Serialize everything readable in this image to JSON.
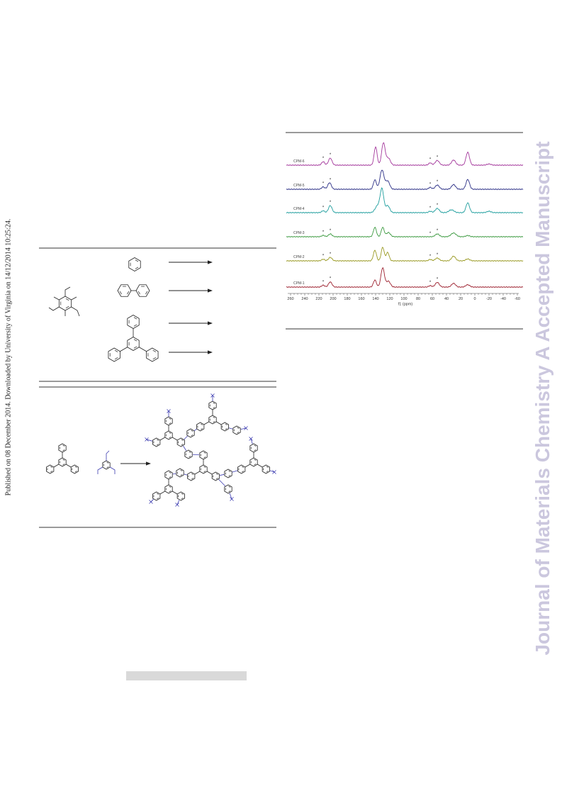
{
  "margin_note": "Published on 08 December 2014. Downloaded by University of Virginia on 14/12/2014 10:25:24.",
  "watermark": "Journal of Materials Chemistry A Accepted Manuscript",
  "colors": {
    "watermark": "#cbc7de",
    "rule": "#9a9a9a",
    "structure": "#222222",
    "network_link": "#3b3bb0"
  },
  "chart_data": {
    "type": "line",
    "xlabel": "f1 (ppm)",
    "xlim": [
      260,
      -60
    ],
    "x_ticks": [
      "260",
      "240",
      "220",
      "200",
      "180",
      "160",
      "140",
      "120",
      "100",
      "80",
      "60",
      "40",
      "20",
      "0",
      "-20",
      "-40",
      "-60"
    ],
    "sideband_marker": "*",
    "series": [
      {
        "name": "CPM-6",
        "color": "#a4389c",
        "peaks": [
          [
            214,
            0.15,
            3
          ],
          [
            204,
            0.3,
            3.5
          ],
          [
            140,
            0.78,
            3
          ],
          [
            129,
            0.95,
            3.5
          ],
          [
            122,
            0.3,
            4
          ],
          [
            63,
            0.1,
            3
          ],
          [
            53,
            0.2,
            4
          ],
          [
            30,
            0.22,
            4
          ],
          [
            10,
            0.55,
            3.5
          ],
          [
            -20,
            0.05,
            4
          ]
        ]
      },
      {
        "name": "CPM-5",
        "color": "#2b2f86",
        "peaks": [
          [
            214,
            0.1,
            3
          ],
          [
            205,
            0.28,
            3.5
          ],
          [
            141,
            0.4,
            3
          ],
          [
            131,
            0.82,
            4
          ],
          [
            123,
            0.35,
            4
          ],
          [
            63,
            0.08,
            3
          ],
          [
            53,
            0.18,
            4
          ],
          [
            30,
            0.2,
            4
          ],
          [
            10,
            0.42,
            3.5
          ]
        ]
      },
      {
        "name": "CPM-4",
        "color": "#1f9e9e",
        "peaks": [
          [
            214,
            0.08,
            3
          ],
          [
            204,
            0.3,
            3.5
          ],
          [
            137,
            0.3,
            5
          ],
          [
            131,
            0.97,
            3.5
          ],
          [
            123,
            0.3,
            4
          ],
          [
            63,
            0.06,
            3
          ],
          [
            53,
            0.18,
            4
          ],
          [
            33,
            0.12,
            5
          ],
          [
            10,
            0.42,
            3.5
          ],
          [
            -20,
            0.06,
            4
          ]
        ]
      },
      {
        "name": "CPM-3",
        "color": "#3c9a40",
        "peaks": [
          [
            214,
            0.06,
            3
          ],
          [
            204,
            0.12,
            3.5
          ],
          [
            141,
            0.4,
            3
          ],
          [
            130,
            0.4,
            3
          ],
          [
            122,
            0.18,
            4
          ],
          [
            53,
            0.12,
            4
          ],
          [
            30,
            0.16,
            5
          ],
          [
            10,
            0.05,
            4
          ]
        ]
      },
      {
        "name": "CPM-2",
        "color": "#9a9a24",
        "peaks": [
          [
            214,
            0.07,
            3
          ],
          [
            204,
            0.15,
            3.5
          ],
          [
            141,
            0.45,
            3
          ],
          [
            130,
            0.58,
            3
          ],
          [
            123,
            0.36,
            3
          ],
          [
            63,
            0.06,
            3
          ],
          [
            53,
            0.12,
            4
          ],
          [
            30,
            0.2,
            4
          ],
          [
            10,
            0.08,
            4
          ]
        ]
      },
      {
        "name": "CPM-1",
        "color": "#9e2331",
        "peaks": [
          [
            214,
            0.08,
            3
          ],
          [
            204,
            0.22,
            3.5
          ],
          [
            141,
            0.3,
            3
          ],
          [
            130,
            0.82,
            3.5
          ],
          [
            122,
            0.25,
            4
          ],
          [
            63,
            0.06,
            3
          ],
          [
            53,
            0.2,
            4
          ],
          [
            30,
            0.16,
            4
          ],
          [
            10,
            0.1,
            4
          ]
        ]
      }
    ]
  }
}
